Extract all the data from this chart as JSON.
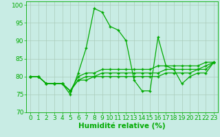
{
  "x": [
    0,
    1,
    2,
    3,
    4,
    5,
    6,
    7,
    8,
    9,
    10,
    11,
    12,
    13,
    14,
    15,
    16,
    17,
    18,
    19,
    20,
    21,
    22,
    23
  ],
  "y_main": [
    80,
    80,
    78,
    78,
    78,
    75,
    81,
    88,
    99,
    98,
    94,
    93,
    90,
    79,
    76,
    76,
    91,
    83,
    82,
    78,
    80,
    81,
    81,
    84
  ],
  "y_line1": [
    80,
    80,
    78,
    78,
    78,
    76,
    80,
    81,
    81,
    82,
    82,
    82,
    82,
    82,
    82,
    82,
    83,
    83,
    83,
    83,
    83,
    83,
    84,
    84
  ],
  "y_line2": [
    80,
    80,
    78,
    78,
    78,
    76,
    79,
    80,
    80,
    81,
    81,
    81,
    81,
    81,
    81,
    81,
    81,
    82,
    82,
    82,
    82,
    82,
    83,
    84
  ],
  "y_line3": [
    80,
    80,
    78,
    78,
    78,
    76,
    79,
    79,
    80,
    80,
    80,
    80,
    80,
    80,
    80,
    80,
    80,
    81,
    81,
    81,
    81,
    82,
    82,
    84
  ],
  "line_color": "#00aa00",
  "bg_color": "#c8ece4",
  "grid_color": "#aaccbb",
  "xlabel": "Humidité relative (%)",
  "ylim": [
    70,
    101
  ],
  "xlim": [
    -0.5,
    23.5
  ],
  "yticks": [
    70,
    75,
    80,
    85,
    90,
    95,
    100
  ],
  "xticks": [
    0,
    1,
    2,
    3,
    4,
    5,
    6,
    7,
    8,
    9,
    10,
    11,
    12,
    13,
    14,
    15,
    16,
    17,
    18,
    19,
    20,
    21,
    22,
    23
  ],
  "tick_fontsize": 6.5,
  "xlabel_fontsize": 7.5,
  "marker": "+",
  "linewidth": 0.9,
  "markersize": 3.5
}
